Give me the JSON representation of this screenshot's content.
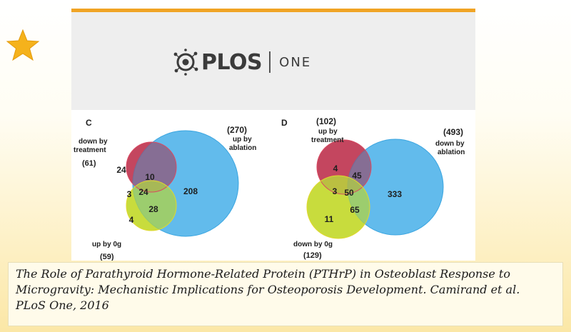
{
  "logo": {
    "brand": "PLOS",
    "sub": "ONE",
    "icon": "plos-logo-icon"
  },
  "panels": {
    "c": {
      "letter": "C",
      "labels": {
        "down_treatment_line1": "down by",
        "down_treatment_line2": "treatment",
        "down_treatment_count": "(61)",
        "up_ablation_count": "(270)",
        "up_ablation_line1": "up by",
        "up_ablation_line2": "ablation",
        "up_0g_line1": "up by 0g",
        "up_0g_count": "(59)"
      },
      "values": {
        "red_only": "24",
        "red_blue": "10",
        "blue_only": "208",
        "red_yellow": "3",
        "center": "24",
        "yellow_only": "4",
        "yellow_blue": "28"
      },
      "colors": {
        "red": "#e8546b",
        "blue": "#55b5ea",
        "yellow": "#f4ec3a"
      }
    },
    "d": {
      "letter": "D",
      "labels": {
        "up_treatment_count": "(102)",
        "up_treatment_line1": "up by",
        "up_treatment_line2": "treatment",
        "down_ablation_count": "(493)",
        "down_ablation_line1": "down by",
        "down_ablation_line2": "ablation",
        "down_0g_line1": "down by 0g",
        "down_0g_count": "(129)"
      },
      "values": {
        "red_only": "4",
        "red_blue": "45",
        "blue_only": "333",
        "red_yellow": "3",
        "center": "50",
        "yellow_only": "11",
        "yellow_blue": "65"
      },
      "colors": {
        "red": "#e8546b",
        "blue": "#55b5ea",
        "yellow": "#f4ec3a"
      }
    }
  },
  "caption": {
    "line1": "The Role of Parathyroid Hormone-Related Protein (PTHrP) in Osteoblast Response to",
    "line2": "Microgravity: Mechanistic Implications for Osteoporosis Development. Camirand et al.",
    "line3": "PLoS One, 2016"
  },
  "decor": {
    "star_color": "#f5b21c",
    "accent_bar_color": "#f0a424"
  }
}
